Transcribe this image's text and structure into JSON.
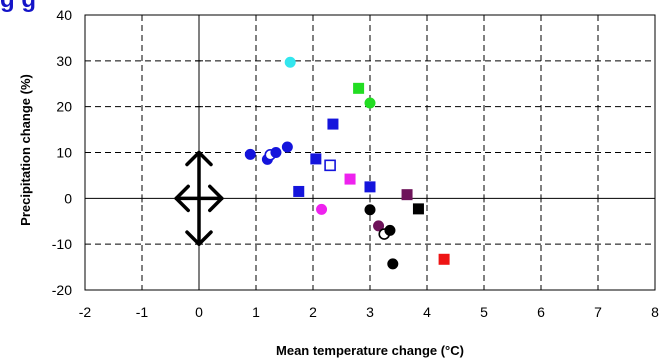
{
  "top_title": "g        g",
  "chart_data": {
    "type": "scatter",
    "title": "",
    "xlabel": "Mean temperature change (°C)",
    "ylabel": "Precipitation change (%)",
    "xlim": [
      -2,
      8
    ],
    "ylim": [
      -20,
      40
    ],
    "x_ticks": [
      -2,
      -1,
      0,
      1,
      2,
      3,
      4,
      5,
      6,
      7,
      8
    ],
    "y_ticks": [
      -20,
      -10,
      0,
      10,
      20,
      30,
      40
    ],
    "x_tick_labels": [
      "-2",
      "-1",
      "0",
      "1",
      "2",
      "3",
      "4",
      "5",
      "6",
      "7",
      "8"
    ],
    "y_tick_labels": [
      "-20",
      "-10",
      "0",
      "10",
      "20",
      "30",
      "40"
    ],
    "grid": true,
    "points": [
      {
        "x": 0.9,
        "y": 9.6,
        "shape": "circle",
        "color": "#1414dc",
        "filled": true
      },
      {
        "x": 1.2,
        "y": 8.5,
        "shape": "circle",
        "color": "#1414dc",
        "filled": true
      },
      {
        "x": 1.25,
        "y": 9.5,
        "shape": "circle",
        "color": "#1414dc",
        "filled": false
      },
      {
        "x": 1.35,
        "y": 10.0,
        "shape": "circle",
        "color": "#1414dc",
        "filled": true
      },
      {
        "x": 1.55,
        "y": 11.2,
        "shape": "circle",
        "color": "#1414dc",
        "filled": true
      },
      {
        "x": 1.6,
        "y": 29.7,
        "shape": "circle",
        "color": "#33e6ee",
        "filled": true
      },
      {
        "x": 1.75,
        "y": 1.5,
        "shape": "square",
        "color": "#1414dc",
        "filled": true
      },
      {
        "x": 2.05,
        "y": 8.6,
        "shape": "square",
        "color": "#1414dc",
        "filled": true
      },
      {
        "x": 2.15,
        "y": -2.4,
        "shape": "circle",
        "color": "#ee22ee",
        "filled": true
      },
      {
        "x": 2.3,
        "y": 7.2,
        "shape": "square",
        "color": "#1414dc",
        "filled": false
      },
      {
        "x": 2.35,
        "y": 16.2,
        "shape": "square",
        "color": "#1414dc",
        "filled": true
      },
      {
        "x": 2.65,
        "y": 4.2,
        "shape": "square",
        "color": "#ee22ee",
        "filled": true
      },
      {
        "x": 2.8,
        "y": 24.0,
        "shape": "square",
        "color": "#22dd22",
        "filled": true
      },
      {
        "x": 3.0,
        "y": 20.8,
        "shape": "circle",
        "color": "#22dd22",
        "filled": true
      },
      {
        "x": 3.0,
        "y": 2.5,
        "shape": "square",
        "color": "#1414dc",
        "filled": true
      },
      {
        "x": 3.0,
        "y": -2.5,
        "shape": "circle",
        "color": "#000000",
        "filled": true
      },
      {
        "x": 3.15,
        "y": -6.0,
        "shape": "circle",
        "color": "#6e145a",
        "filled": true
      },
      {
        "x": 3.25,
        "y": -7.8,
        "shape": "circle",
        "color": "#000000",
        "filled": false
      },
      {
        "x": 3.35,
        "y": -7.0,
        "shape": "circle",
        "color": "#000000",
        "filled": true
      },
      {
        "x": 3.4,
        "y": -14.3,
        "shape": "circle",
        "color": "#000000",
        "filled": true
      },
      {
        "x": 3.65,
        "y": 0.8,
        "shape": "square",
        "color": "#6e145a",
        "filled": true
      },
      {
        "x": 3.85,
        "y": -2.3,
        "shape": "square",
        "color": "#000000",
        "filled": true
      },
      {
        "x": 4.3,
        "y": -13.3,
        "shape": "square",
        "color": "#ee1414",
        "filled": true
      }
    ],
    "annotations": [
      {
        "type": "four-way-arrow",
        "x": 0,
        "y": 0,
        "dx": 0.4,
        "dy": 10,
        "color": "#000000"
      }
    ]
  }
}
